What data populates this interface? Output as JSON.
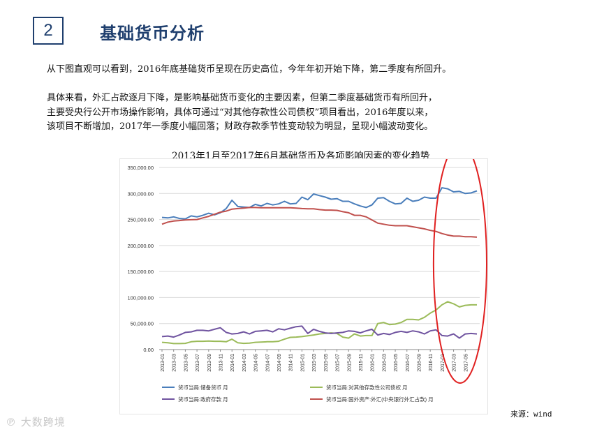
{
  "header": {
    "section_number": "2",
    "title": "基础货币分析"
  },
  "body": {
    "paragraph1": "从下图直观可以看到，2016年底基础货币呈现在历史高位，今年年初开始下降，第二季度有所回升。",
    "paragraph2_lines": [
      "具体来看，外汇占款逐月下降，是影响基础货币变化的主要因素，但第二季度基础货币有所回升，",
      "主要受央行公开市场操作影响，具体可通过“对其他存款性公司债权”项目看出，2016年度以来，",
      "该项目不断增加，2017年一季度小幅回落；财政存款季节性变动较为明显，呈现小幅波动变化。"
    ]
  },
  "source": "来源：wind",
  "watermark": "大数跨境",
  "colors": {
    "reserve_money": "#4a7ebb",
    "claims_on_odc": "#9bbb59",
    "gov_deposits": "#7054a0",
    "fx_assets": "#c0504d",
    "highlight_ellipse": "#e02020",
    "title_blue": "#1f3f6e"
  },
  "chart_data": {
    "type": "line",
    "title": "2013年1月至2017年6月基础货币及各项影响因素的变化趋势",
    "xlabel": "",
    "ylabel": "",
    "ylim": [
      0,
      350000
    ],
    "yticks": [
      "0.00",
      "50,000.00",
      "100,000.00",
      "150,000.00",
      "200,000.00",
      "250,000.00",
      "300,000.00",
      "350,000.00"
    ],
    "x_tick_labels": [
      "2013-01",
      "2013-03",
      "2013-05",
      "2013-07",
      "2013-09",
      "2013-11",
      "2014-01",
      "2014-03",
      "2014-05",
      "2014-07",
      "2014-09",
      "2014-11",
      "2015-01",
      "2015-03",
      "2015-05",
      "2015-07",
      "2015-09",
      "2015-11",
      "2016-01",
      "2016-03",
      "2016-05",
      "2016-07",
      "2016-09",
      "2016-11",
      "2017-01",
      "2017-03",
      "2017-05"
    ],
    "grid": true,
    "legend_position": "bottom",
    "annotation": "red ellipse highlighting 2017-01 to 2017-06",
    "series": [
      {
        "name": "货币当局:储备货币 月",
        "color": "#4a7ebb",
        "values": [
          254000,
          253000,
          255000,
          252000,
          251000,
          257000,
          255000,
          258000,
          262000,
          259000,
          263000,
          271000,
          287000,
          275000,
          274000,
          273000,
          279000,
          276000,
          281000,
          278000,
          280000,
          285000,
          280000,
          281000,
          293000,
          288000,
          299000,
          296000,
          293000,
          289000,
          290000,
          285000,
          285000,
          280000,
          276000,
          273000,
          278000,
          291000,
          292000,
          285000,
          280000,
          281000,
          291000,
          285000,
          287000,
          293000,
          291000,
          291000,
          311000,
          309000,
          303000,
          304000,
          300000,
          301000,
          305000
        ]
      },
      {
        "name": "货币当局:对其他存款性公司债权 月",
        "color": "#9bbb59",
        "values": [
          14000,
          13000,
          11500,
          11500,
          12000,
          15000,
          16000,
          16000,
          16500,
          16000,
          16000,
          15000,
          20000,
          13000,
          12000,
          12500,
          14000,
          14500,
          15000,
          15000,
          16000,
          20000,
          23500,
          24000,
          25000,
          26500,
          28000,
          30000,
          31000,
          32000,
          31000,
          24000,
          22000,
          30000,
          26000,
          27000,
          27000,
          50000,
          52000,
          48000,
          49000,
          52000,
          58000,
          58000,
          57000,
          62000,
          70000,
          76000,
          86000,
          92000,
          88000,
          82000,
          85000,
          86000,
          86000
        ]
      },
      {
        "name": "货币当局:政府存款 月",
        "color": "#7054a0",
        "values": [
          25000,
          26000,
          24000,
          28000,
          33000,
          34000,
          37000,
          37000,
          36000,
          39000,
          42000,
          33000,
          30000,
          31000,
          34000,
          30000,
          35000,
          36000,
          37000,
          34000,
          40000,
          38000,
          41000,
          44000,
          45000,
          31000,
          39000,
          35000,
          32000,
          31000,
          32000,
          33000,
          36000,
          35000,
          32000,
          36000,
          39000,
          28000,
          31000,
          29000,
          33000,
          35000,
          33000,
          36000,
          34000,
          30000,
          36000,
          38000,
          27000,
          26000,
          30000,
          22000,
          30000,
          31000,
          30000
        ]
      },
      {
        "name": "货币当局:国外资产:外汇(中央银行外汇占款) 月",
        "color": "#c0504d",
        "values": [
          241000,
          245000,
          247000,
          248000,
          249000,
          249500,
          250000,
          253000,
          256000,
          260000,
          264000,
          266000,
          270000,
          271000,
          272000,
          273000,
          273000,
          272500,
          272500,
          272500,
          272500,
          272500,
          272500,
          272000,
          271000,
          270500,
          270500,
          269000,
          268000,
          268000,
          267500,
          265000,
          263000,
          258000,
          258000,
          255000,
          249000,
          243000,
          241000,
          239000,
          238000,
          238000,
          238000,
          236000,
          234000,
          232000,
          229000,
          227000,
          223000,
          220000,
          218000,
          218000,
          217000,
          217000,
          216000
        ]
      }
    ]
  }
}
